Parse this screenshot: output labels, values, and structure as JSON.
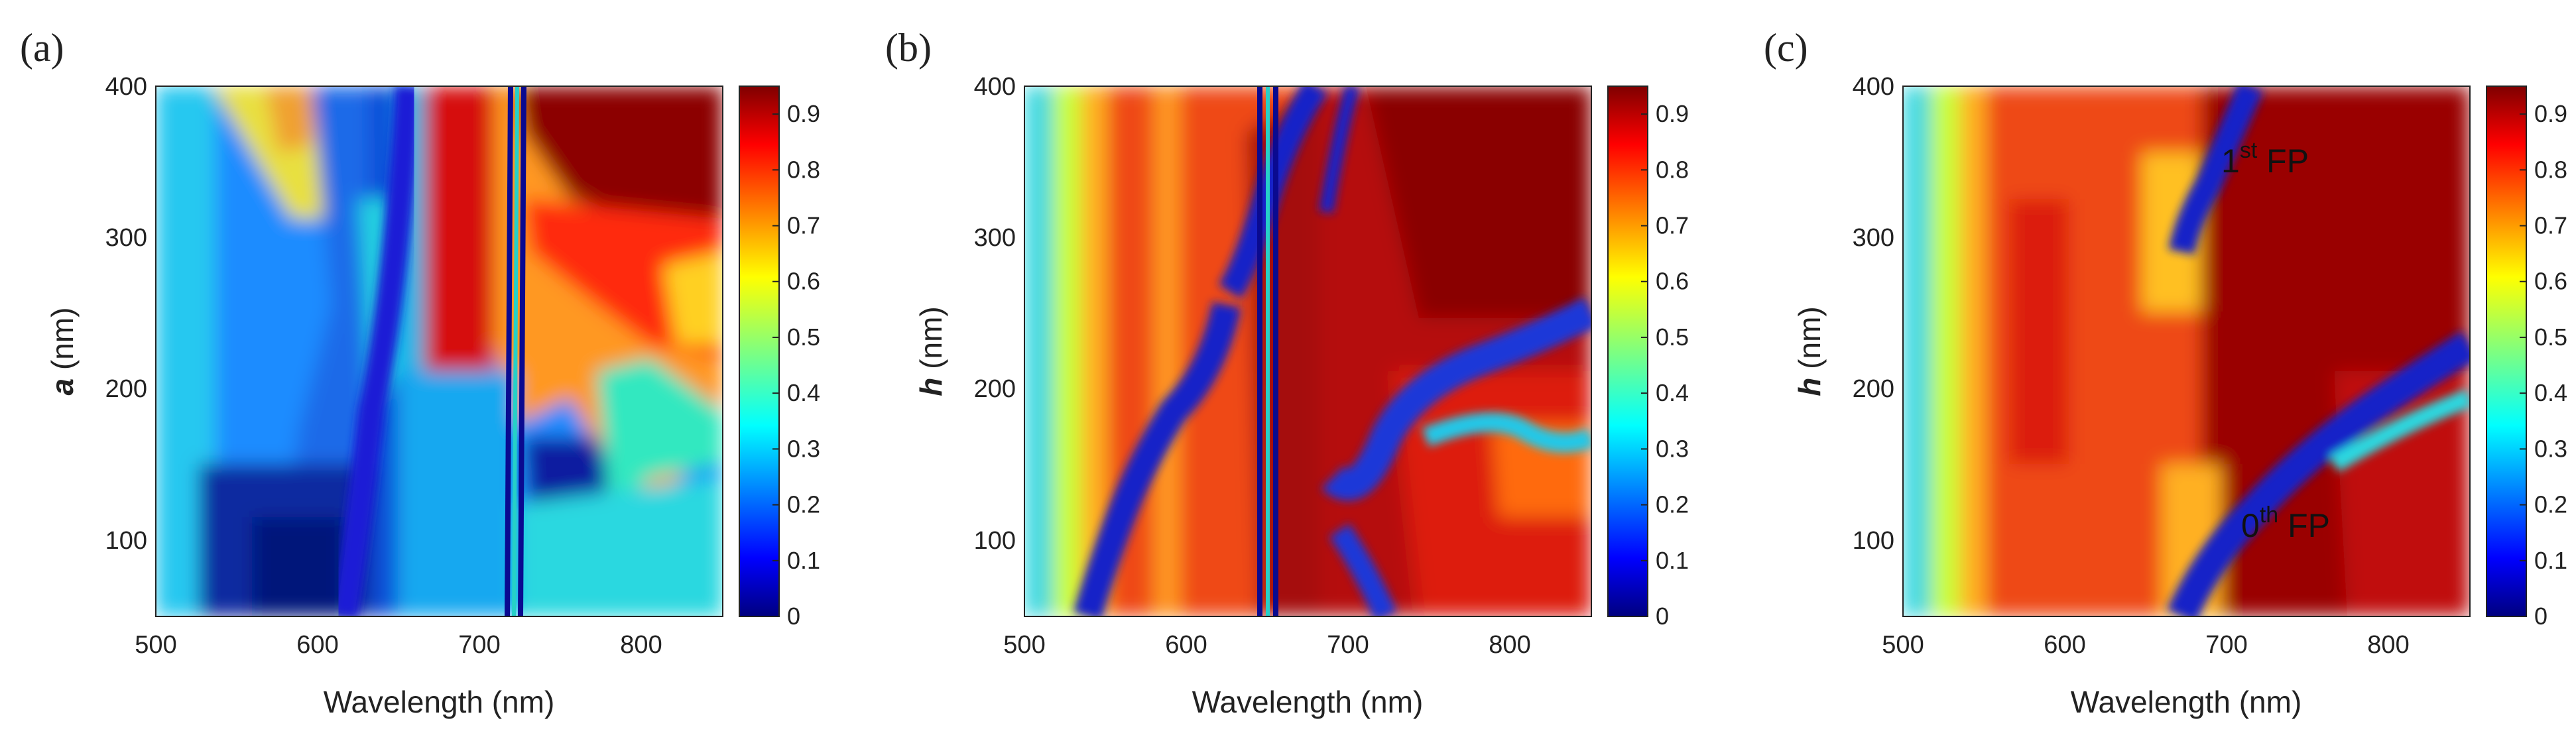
{
  "chart_data": [
    {
      "type": "heatmap",
      "panel_label": "(a)",
      "xlabel": "Wavelength (nm)",
      "ylabel_var": "a",
      "ylabel_unit": " (nm)",
      "xlim": [
        500,
        850
      ],
      "ylim": [
        50,
        400
      ],
      "xticks": [
        500,
        600,
        700,
        800
      ],
      "yticks": [
        100,
        200,
        300,
        400
      ],
      "colorbar": {
        "range": [
          0,
          0.95
        ],
        "ticks": [
          0,
          0.1,
          0.2,
          0.3,
          0.4,
          0.5,
          0.6,
          0.7,
          0.8,
          0.9
        ]
      },
      "annotations": []
    },
    {
      "type": "heatmap",
      "panel_label": "(b)",
      "xlabel": "Wavelength (nm)",
      "ylabel_var": "h",
      "ylabel_unit": " (nm)",
      "xlim": [
        500,
        850
      ],
      "ylim": [
        50,
        400
      ],
      "xticks": [
        500,
        600,
        700,
        800
      ],
      "yticks": [
        100,
        200,
        300,
        400
      ],
      "colorbar": {
        "range": [
          0,
          0.95
        ],
        "ticks": [
          0,
          0.1,
          0.2,
          0.3,
          0.4,
          0.5,
          0.6,
          0.7,
          0.8,
          0.9
        ]
      },
      "annotations": []
    },
    {
      "type": "heatmap",
      "panel_label": "(c)",
      "xlabel": "Wavelength (nm)",
      "ylabel_var": "h",
      "ylabel_unit": " (nm)",
      "xlim": [
        500,
        850
      ],
      "ylim": [
        50,
        400
      ],
      "xticks": [
        500,
        600,
        700,
        800
      ],
      "yticks": [
        100,
        200,
        300,
        400
      ],
      "colorbar": {
        "range": [
          0,
          0.95
        ],
        "ticks": [
          0,
          0.1,
          0.2,
          0.3,
          0.4,
          0.5,
          0.6,
          0.7,
          0.8,
          0.9
        ]
      },
      "annotations": [
        {
          "main": "1",
          "sup": "st",
          "rest": " FP",
          "x_nm": 700,
          "y_nm": 345
        },
        {
          "main": "0",
          "sup": "th",
          "rest": " FP",
          "x_nm": 712,
          "y_nm": 75
        }
      ]
    }
  ]
}
